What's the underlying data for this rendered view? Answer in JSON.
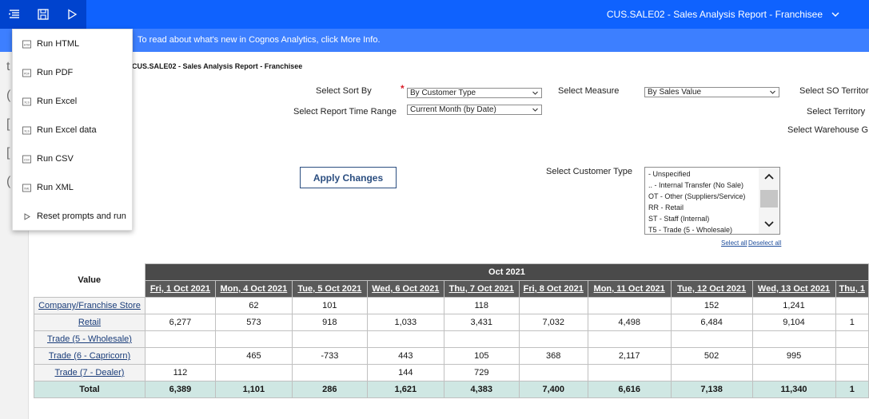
{
  "topbar": {
    "title": "CUS.SALE02 - Sales Analysis Report - Franchisee",
    "icons": [
      "menu-icon",
      "save-icon",
      "run-icon",
      "chevron-down-icon"
    ]
  },
  "banner": {
    "text": "To read about what's new in Cognos Analytics, click More Info."
  },
  "left_rail": {
    "glyphs": [
      "t",
      "(",
      "[",
      "[",
      "("
    ]
  },
  "run_menu": {
    "items": [
      {
        "label": "Run HTML",
        "icon": "html-file-icon"
      },
      {
        "label": "Run PDF",
        "icon": "pdf-file-icon"
      },
      {
        "label": "Run Excel",
        "icon": "excel-file-icon"
      },
      {
        "label": "Run Excel data",
        "icon": "excel-data-file-icon"
      },
      {
        "label": "Run CSV",
        "icon": "csv-file-icon"
      },
      {
        "label": "Run XML",
        "icon": "xml-file-icon"
      },
      {
        "label": "Reset prompts and run",
        "icon": "play-icon"
      }
    ]
  },
  "report": {
    "title": "CUS.SALE02 - Sales Analysis Report - Franchisee",
    "prompts": {
      "sort_by_label": "Select Sort By",
      "sort_by_value": "By Customer Type",
      "time_range_label": "Select Report Time Range",
      "time_range_value": "Current Month (by Date)",
      "measure_label": "Select Measure",
      "measure_value": "By Sales Value",
      "so_territory_label": "Select SO Territor",
      "territory_label": "Select Territory",
      "warehouse_label": "Select Warehouse G",
      "customer_type_label": "Select Customer Type",
      "customer_types": [
        "- Unspecified",
        ".. - Internal Transfer (No Sale)",
        "OT - Other (Suppliers/Service)",
        "RR - Retail",
        "ST - Staff (Internal)",
        "T5 - Trade (5 - Wholesale)"
      ],
      "select_all": "Select all",
      "deselect_all": "Deselect all",
      "apply_label": "Apply Changes"
    },
    "crosstab": {
      "corner_label": "Value",
      "month": "Oct 2021",
      "dates": [
        "Fri, 1 Oct 2021",
        "Mon, 4 Oct 2021",
        "Tue, 5 Oct 2021",
        "Wed, 6 Oct 2021",
        "Thu, 7 Oct 2021",
        "Fri, 8 Oct 2021",
        "Mon, 11 Oct 2021",
        "Tue, 12 Oct 2021",
        "Wed, 13 Oct 2021",
        "Thu, 1"
      ],
      "rows": [
        {
          "label": "Company/Franchise Store",
          "values": [
            "",
            "62",
            "101",
            "",
            "118",
            "",
            "",
            "152",
            "1,241",
            ""
          ]
        },
        {
          "label": "Retail",
          "values": [
            "6,277",
            "573",
            "918",
            "1,033",
            "3,431",
            "7,032",
            "4,498",
            "6,484",
            "9,104",
            "1"
          ]
        },
        {
          "label": "Trade (5 - Wholesale)",
          "values": [
            "",
            "",
            "",
            "",
            "",
            "",
            "",
            "",
            "",
            ""
          ]
        },
        {
          "label": "Trade (6 - Capricorn)",
          "values": [
            "",
            "465",
            "-733",
            "443",
            "105",
            "368",
            "2,117",
            "502",
            "995",
            ""
          ]
        },
        {
          "label": "Trade (7 - Dealer)",
          "values": [
            "112",
            "",
            "",
            "144",
            "729",
            "",
            "",
            "",
            "",
            ""
          ]
        }
      ],
      "total": {
        "label": "Total",
        "values": [
          "6,389",
          "1,101",
          "286",
          "1,621",
          "4,383",
          "7,400",
          "6,616",
          "7,138",
          "11,340",
          "1"
        ]
      }
    }
  }
}
